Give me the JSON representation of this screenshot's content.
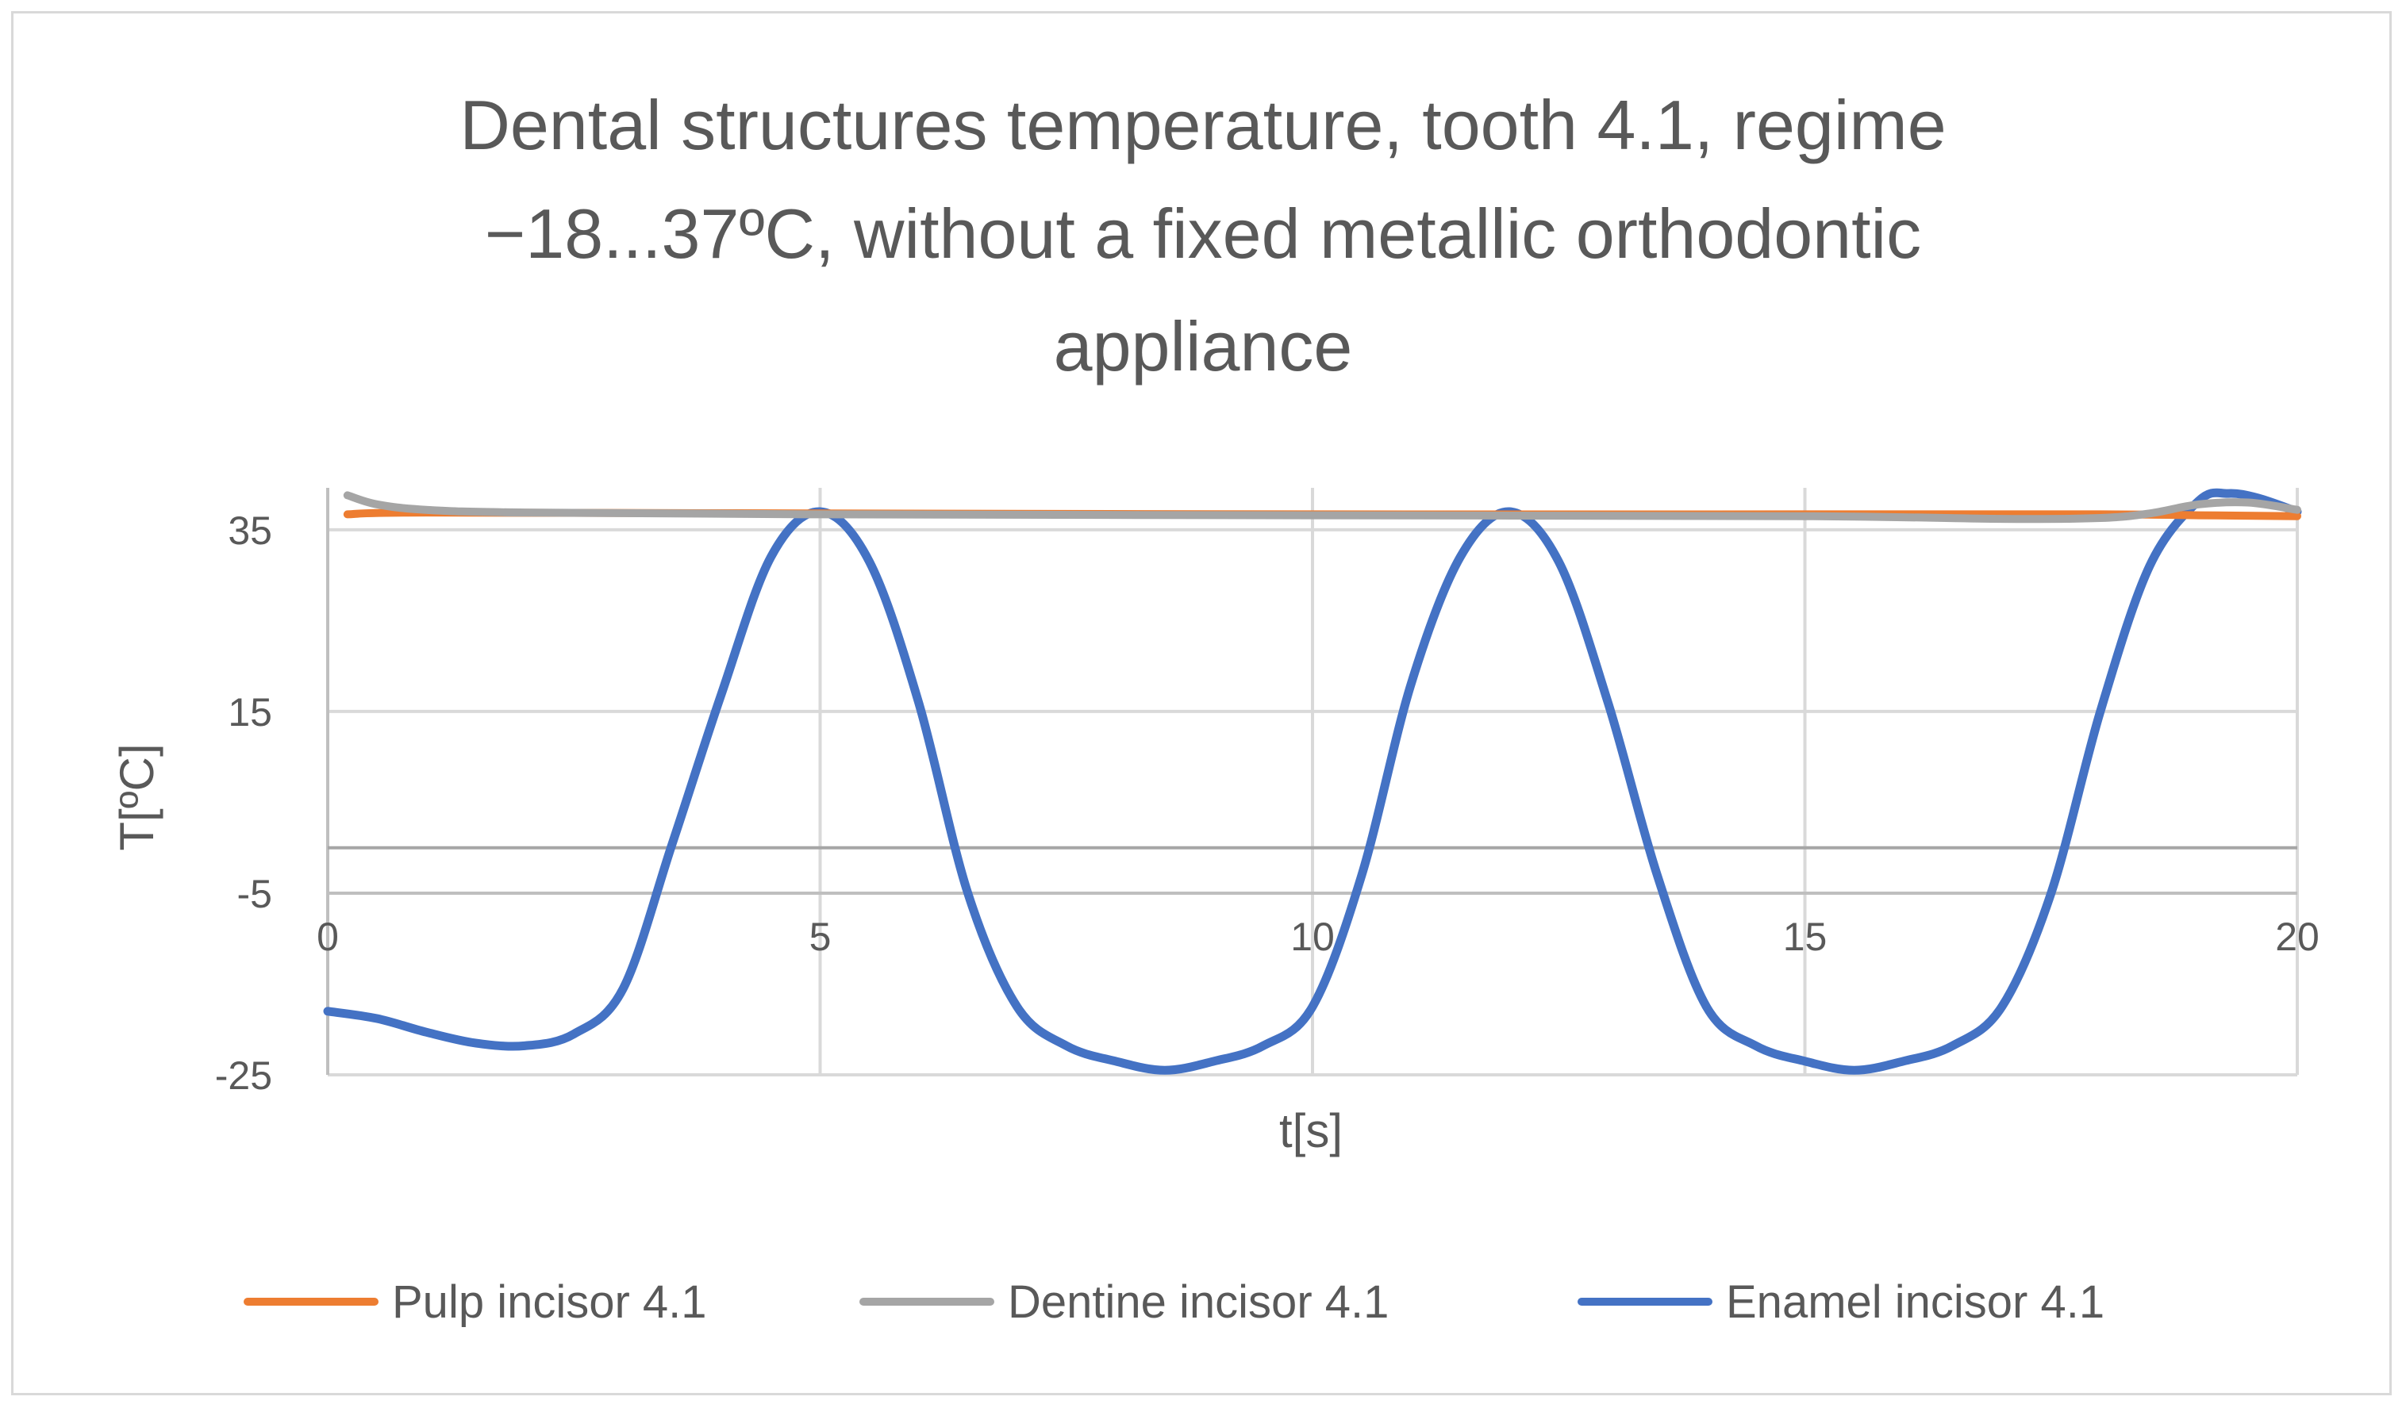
{
  "chart_data": {
    "type": "line",
    "title_lines": [
      "Dental structures temperature, tooth 4.1, regime",
      "−18...37ºC, without a fixed metallic orthodontic",
      "appliance"
    ],
    "xlabel": "t[s]",
    "ylabel": "T[ºC]",
    "xlim": [
      0,
      20
    ],
    "ylim": [
      -25,
      37
    ],
    "x_ticks": [
      0,
      5,
      10,
      15,
      20
    ],
    "y_ticks": [
      -25,
      -5,
      15,
      35
    ],
    "y_tick_labels": [
      "-25",
      "-5",
      "15",
      "35"
    ],
    "x_tick_labels": [
      "0",
      "5",
      "10",
      "15",
      "20"
    ],
    "x_axis_crosses_at": -5,
    "grid": true,
    "legend_position": "bottom",
    "series": [
      {
        "name": "Pulp incisor 4.1",
        "color": "#ED7D31",
        "x": [
          0.2,
          1,
          5,
          10,
          15,
          18,
          19,
          20
        ],
        "y": [
          36.7,
          36.9,
          36.8,
          36.7,
          36.7,
          36.7,
          36.6,
          36.5
        ]
      },
      {
        "name": "Dentine  incisor 4.1",
        "color": "#A5A5A5",
        "x": [
          0.2,
          0.5,
          1,
          2,
          5,
          10,
          15,
          17,
          18,
          18.5,
          19,
          19.5,
          20
        ],
        "y": [
          38.8,
          37.8,
          37.2,
          36.9,
          36.7,
          36.6,
          36.5,
          36.2,
          36.3,
          36.8,
          37.8,
          38.0,
          37.2
        ]
      },
      {
        "name": "Enamel  incisor 4.1",
        "color": "#4472C4",
        "x": [
          0,
          0.5,
          1,
          1.5,
          2,
          2.5,
          3,
          3.5,
          4,
          4.5,
          5,
          5.5,
          6,
          6.5,
          7,
          7.5,
          8,
          8.5,
          9,
          9.5,
          10,
          10.5,
          11,
          11.5,
          12,
          12.5,
          13,
          13.5,
          14,
          14.5,
          15,
          15.5,
          16,
          16.5,
          17,
          17.5,
          18,
          18.5,
          19,
          19.3,
          19.6,
          20
        ],
        "y": [
          -18.0,
          -18.8,
          -20.3,
          -21.5,
          -21.8,
          -20.5,
          -15.5,
          0.5,
          17.0,
          32.0,
          37.0,
          31.5,
          16.0,
          -5.0,
          -17.5,
          -21.8,
          -23.5,
          -24.5,
          -23.5,
          -21.8,
          -17.5,
          -3.0,
          18.0,
          32.0,
          37.0,
          31.5,
          16.0,
          -3.0,
          -17.5,
          -21.8,
          -23.5,
          -24.5,
          -23.5,
          -21.8,
          -17.5,
          -5.0,
          15.0,
          31.0,
          38.2,
          39.0,
          38.5,
          37.0
        ]
      }
    ]
  }
}
